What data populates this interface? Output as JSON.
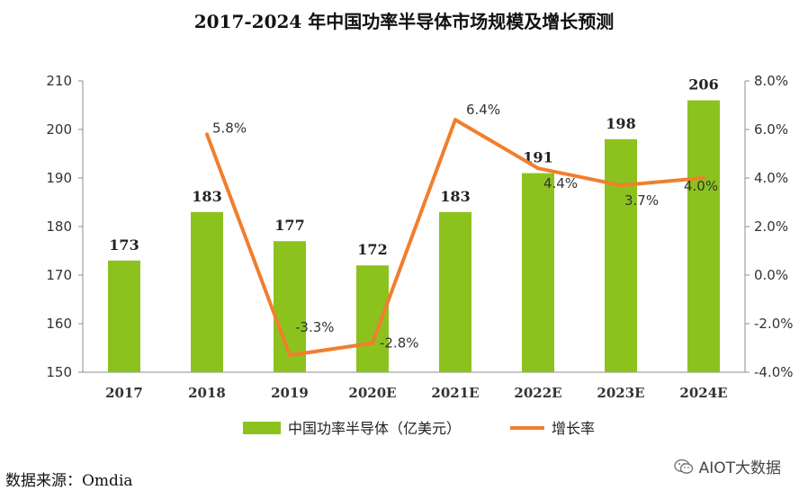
{
  "chart_data": {
    "type": "bar+line",
    "title": "2017-2024 年中国功率半导体市场规模及增长预测",
    "categories": [
      "2017",
      "2018",
      "2019",
      "2020E",
      "2021E",
      "2022E",
      "2023E",
      "2024E"
    ],
    "series": [
      {
        "name": "中国功率半导体（亿美元）",
        "type": "bar",
        "axis": "left",
        "values": [
          173,
          183,
          177,
          172,
          183,
          191,
          198,
          206
        ],
        "labels": [
          "173",
          "183",
          "177",
          "172",
          "183",
          "191",
          "198",
          "206"
        ],
        "color": "#8cc21e"
      },
      {
        "name": "增长率",
        "type": "line",
        "axis": "right",
        "values": [
          null,
          5.8,
          -3.3,
          -2.8,
          6.4,
          4.4,
          3.7,
          4.0
        ],
        "labels": [
          "",
          "5.8%",
          "-3.3%",
          "-2.8%",
          "6.4%",
          "4.4%",
          "3.7%",
          "4.0%"
        ],
        "color": "#f07f2d"
      }
    ],
    "left_axis": {
      "ylim": [
        150,
        210
      ],
      "ticks": [
        "150",
        "160",
        "170",
        "180",
        "190",
        "200",
        "210"
      ]
    },
    "right_axis": {
      "ylim": [
        -4,
        8
      ],
      "ticks": [
        "-4.0%",
        "-2.0%",
        "0.0%",
        "2.0%",
        "4.0%",
        "6.0%",
        "8.0%"
      ]
    },
    "grid": false,
    "legend_position": "bottom"
  },
  "source": "数据来源：Omdia",
  "watermark": "AIOT大数据"
}
